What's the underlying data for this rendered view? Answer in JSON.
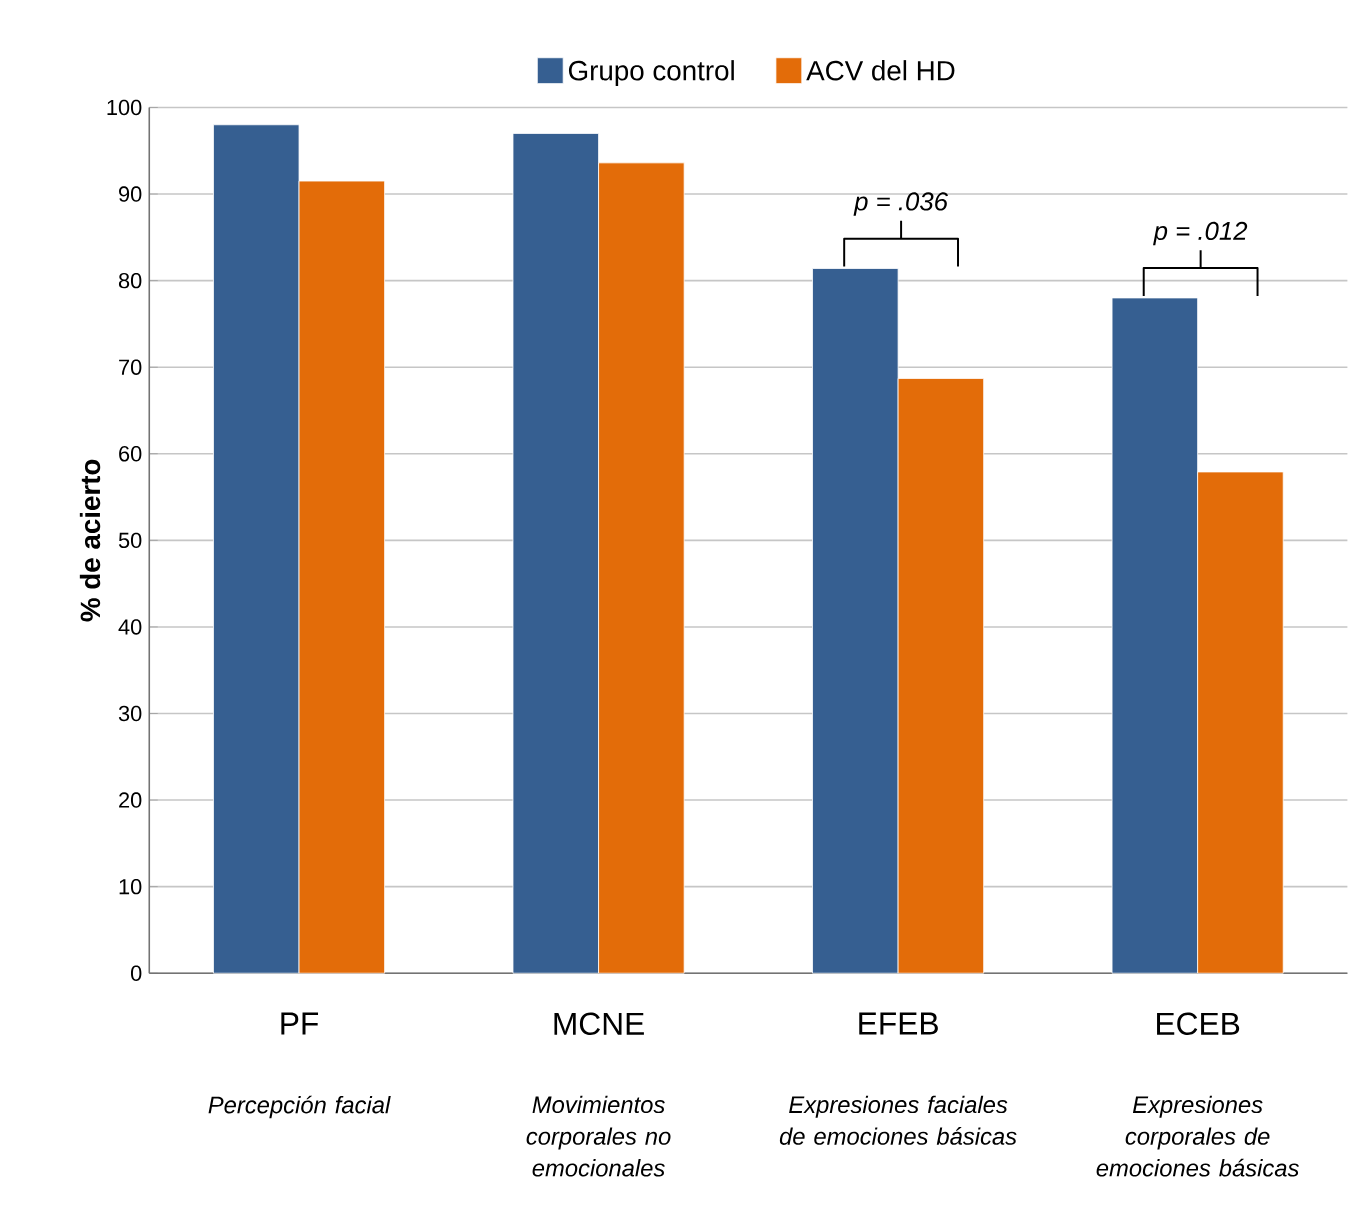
{
  "chart_data": {
    "type": "bar",
    "ylabel": "% de acierto",
    "categories": [
      "PF",
      "MCNE",
      "EFEB",
      "ECEB"
    ],
    "series": [
      {
        "name": "Grupo control",
        "color": "#365f91",
        "values": [
          98,
          97,
          81.4,
          78
        ]
      },
      {
        "name": "ACV del HD",
        "color": "#e36c09",
        "values": [
          91.5,
          93.6,
          68.7,
          57.9
        ]
      }
    ],
    "ylim": [
      0,
      100
    ],
    "yticks": [
      0,
      10,
      20,
      30,
      40,
      50,
      60,
      70,
      80,
      90,
      100
    ],
    "grid": "y",
    "legend": "top",
    "annotations": [
      "Percepción facial",
      "Movimientos corporales no emocionales",
      "Expresiones faciales de emociones básicas",
      "Expresiones corporales de emociones básicas",
      "p = .036",
      "p = .012"
    ]
  }
}
